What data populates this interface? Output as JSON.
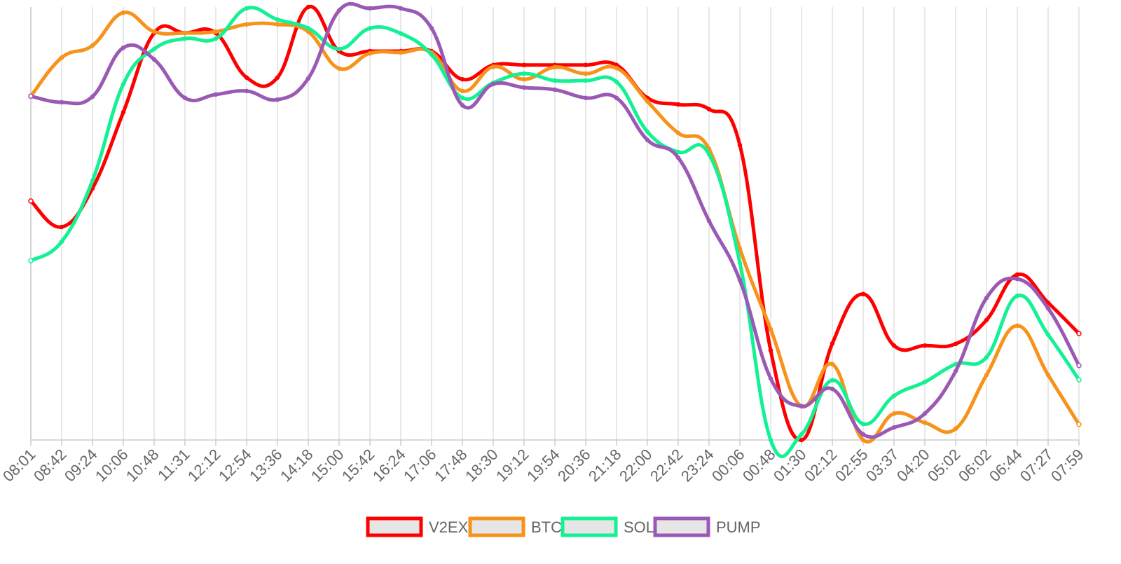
{
  "chart_data": {
    "type": "line",
    "categories": [
      "08:01",
      "08:42",
      "09:24",
      "10:06",
      "10:48",
      "11:31",
      "12:12",
      "12:54",
      "13:36",
      "14:18",
      "15:00",
      "15:42",
      "16:24",
      "17:06",
      "17:48",
      "18:30",
      "19:12",
      "19:54",
      "20:36",
      "21:18",
      "22:00",
      "22:42",
      "23:24",
      "00:06",
      "00:48",
      "01:30",
      "02:12",
      "02:55",
      "03:37",
      "04:20",
      "05:02",
      "06:02",
      "06:44",
      "07:27",
      "07:59"
    ],
    "ylim": [
      0,
      100
    ],
    "grid": true,
    "legend": "bottom",
    "series": [
      {
        "name": "V2EX",
        "color": "#ff0000",
        "values": [
          55.2,
          49.2,
          58.1,
          75.7,
          94.0,
          94.0,
          94.0,
          83.7,
          83.7,
          100,
          89.8,
          89.8,
          89.8,
          89.8,
          83.3,
          86.6,
          86.6,
          86.6,
          86.6,
          86.6,
          79.0,
          77.5,
          76.4,
          68.1,
          20.7,
          0,
          22.3,
          33.7,
          21.8,
          21.8,
          22.2,
          27.7,
          38.2,
          31.7,
          24.6
        ]
      },
      {
        "name": "BTC",
        "color": "#f7931a",
        "values": [
          79.4,
          88.3,
          91.1,
          98.7,
          94.3,
          94.0,
          94.3,
          96,
          96,
          94.3,
          85.8,
          89.3,
          89.5,
          89.5,
          80.6,
          86.2,
          83.3,
          86.1,
          84.6,
          85.9,
          78.2,
          70.9,
          67.2,
          44.2,
          25.6,
          7.8,
          17.5,
          0,
          6.1,
          4,
          2.6,
          15,
          26.4,
          15,
          3.6
        ]
      },
      {
        "name": "SOL",
        "color": "#14f195",
        "values": [
          41.4,
          45.8,
          59.9,
          82.2,
          90.3,
          92.7,
          92.7,
          99.7,
          97.1,
          95.1,
          90.3,
          95.1,
          93.9,
          89,
          79,
          82.5,
          84.6,
          83,
          83,
          82.7,
          71.2,
          66.5,
          66,
          40.9,
          0,
          1.3,
          13.8,
          3.7,
          10.2,
          13.4,
          17.5,
          19.1,
          33.3,
          24.3,
          13.9
        ]
      },
      {
        "name": "PUMP",
        "color": "#9b59b6",
        "values": [
          79.4,
          78,
          79.3,
          90.6,
          87.9,
          79,
          79.8,
          80.6,
          78.6,
          83.5,
          99.2,
          99.7,
          99.7,
          95.1,
          77.3,
          82.2,
          81.4,
          80.9,
          79,
          79,
          69.3,
          65.2,
          50.6,
          36.9,
          14.2,
          7.8,
          11.8,
          1.3,
          2.9,
          6.1,
          15.9,
          32.8,
          37.2,
          30.4,
          17.2
        ]
      }
    ]
  }
}
